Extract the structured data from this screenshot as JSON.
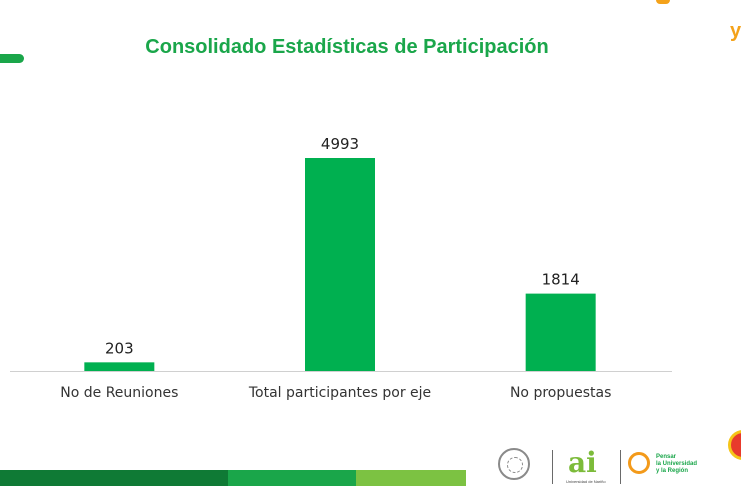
{
  "slide": {
    "title": "Consolidado Estadísticas de Participación"
  },
  "colors": {
    "bar": "#00b050",
    "title": "#1aa64a",
    "footer": [
      "#0f7a35",
      "#1aa64a",
      "#7cc242"
    ],
    "accent_orange": "#f4a21a"
  },
  "logos": {
    "logo_1": "university-seal",
    "logo_2_text": "ai",
    "logo_2_sub": "Universidad de Nariño",
    "logo_3_text": [
      "Pensar",
      "la Universidad",
      "y la Región"
    ]
  },
  "chart_data": {
    "type": "bar",
    "categories": [
      "No de Reuniones",
      "Total participantes por eje",
      "No propuestas"
    ],
    "values": [
      203,
      4993,
      1814
    ],
    "title": "",
    "xlabel": "",
    "ylabel": "",
    "ylim": [
      0,
      5000
    ],
    "grid": false,
    "legend": "none",
    "data_labels": true
  }
}
